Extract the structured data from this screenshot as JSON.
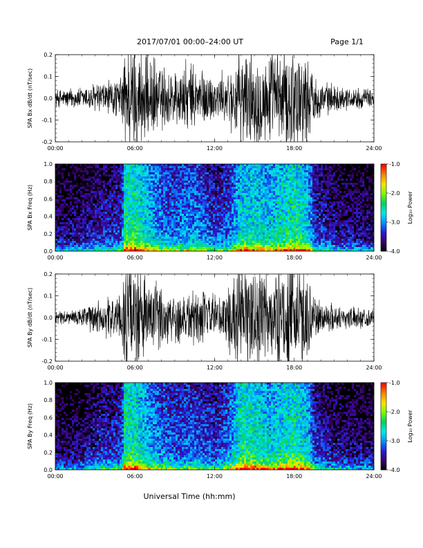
{
  "header": {
    "title": "2017/07/01   00:00–24:00 UT",
    "page": "Page 1/1"
  },
  "footer": {
    "xlabel": "Universal Time (hh:mm)"
  },
  "colorbar": {
    "label": "Log₁₀ Power",
    "ticks": [
      "-1.0",
      "-2.0",
      "-3.0",
      "-4.0"
    ],
    "range": [
      -4.0,
      -1.0
    ],
    "colors": [
      "#000000",
      "#3a0068",
      "#2a1ad8",
      "#0090ff",
      "#00e8e8",
      "#00d060",
      "#7cfc00",
      "#ffe000",
      "#ff8000",
      "#ff0000"
    ]
  },
  "chart_data": [
    {
      "type": "line",
      "ylabel": "SPA Bx dB/dt (nT/sec)",
      "ylim": [
        -0.2,
        0.2
      ],
      "yticks": [
        "0.2",
        "0.1",
        "0.0",
        "-0.1",
        "-0.2"
      ],
      "xlim": [
        "00:00",
        "24:00"
      ],
      "xticks": [
        "00:00",
        "06:00",
        "12:00",
        "18:00",
        "24:00"
      ],
      "activity": [
        [
          0,
          0.04
        ],
        [
          2,
          0.05
        ],
        [
          3,
          0.07
        ],
        [
          4,
          0.08
        ],
        [
          5,
          0.09
        ],
        [
          5.2,
          0.25
        ],
        [
          6,
          0.25
        ],
        [
          7,
          0.2
        ],
        [
          8,
          0.15
        ],
        [
          9,
          0.13
        ],
        [
          10,
          0.16
        ],
        [
          11,
          0.14
        ],
        [
          12,
          0.1
        ],
        [
          13,
          0.12
        ],
        [
          14,
          0.22
        ],
        [
          15,
          0.22
        ],
        [
          16,
          0.2
        ],
        [
          17,
          0.22
        ],
        [
          18,
          0.25
        ],
        [
          19,
          0.2
        ],
        [
          19.5,
          0.1
        ],
        [
          20,
          0.08
        ],
        [
          21,
          0.06
        ],
        [
          22,
          0.05
        ],
        [
          24,
          0.04
        ]
      ]
    },
    {
      "type": "heatmap",
      "ylabel": "SPA Bx Freq (Hz)",
      "ylim": [
        0.0,
        1.0
      ],
      "yticks": [
        "1.0",
        "0.8",
        "0.6",
        "0.4",
        "0.2",
        "0.0"
      ],
      "xlim": [
        "00:00",
        "24:00"
      ],
      "xticks": [
        "00:00",
        "06:00",
        "12:00",
        "18:00",
        "24:00"
      ],
      "zlim": [
        -4.0,
        -1.0
      ]
    },
    {
      "type": "line",
      "ylabel": "SPA By dB/dt (nT/sec)",
      "ylim": [
        -0.2,
        0.2
      ],
      "yticks": [
        "0.2",
        "0.1",
        "0.0",
        "-0.1",
        "-0.2"
      ],
      "xlim": [
        "00:00",
        "24:00"
      ],
      "xticks": [
        "00:00",
        "06:00",
        "12:00",
        "18:00",
        "24:00"
      ],
      "activity": [
        [
          0,
          0.03
        ],
        [
          2,
          0.04
        ],
        [
          3,
          0.08
        ],
        [
          4,
          0.09
        ],
        [
          5,
          0.1
        ],
        [
          5.2,
          0.25
        ],
        [
          6,
          0.24
        ],
        [
          7,
          0.18
        ],
        [
          8,
          0.14
        ],
        [
          9,
          0.12
        ],
        [
          10,
          0.13
        ],
        [
          11,
          0.12
        ],
        [
          12,
          0.1
        ],
        [
          13,
          0.14
        ],
        [
          14,
          0.25
        ],
        [
          15,
          0.24
        ],
        [
          16,
          0.2
        ],
        [
          17,
          0.22
        ],
        [
          18,
          0.25
        ],
        [
          19,
          0.2
        ],
        [
          19.5,
          0.1
        ],
        [
          20,
          0.08
        ],
        [
          21,
          0.06
        ],
        [
          22,
          0.05
        ],
        [
          24,
          0.04
        ]
      ]
    },
    {
      "type": "heatmap",
      "ylabel": "SPA By Freq (Hz)",
      "ylim": [
        0.0,
        1.0
      ],
      "yticks": [
        "1.0",
        "0.8",
        "0.6",
        "0.4",
        "0.2",
        "0.0"
      ],
      "xlim": [
        "00:00",
        "24:00"
      ],
      "xticks": [
        "00:00",
        "06:00",
        "12:00",
        "18:00",
        "24:00"
      ],
      "zlim": [
        -4.0,
        -1.0
      ]
    }
  ]
}
